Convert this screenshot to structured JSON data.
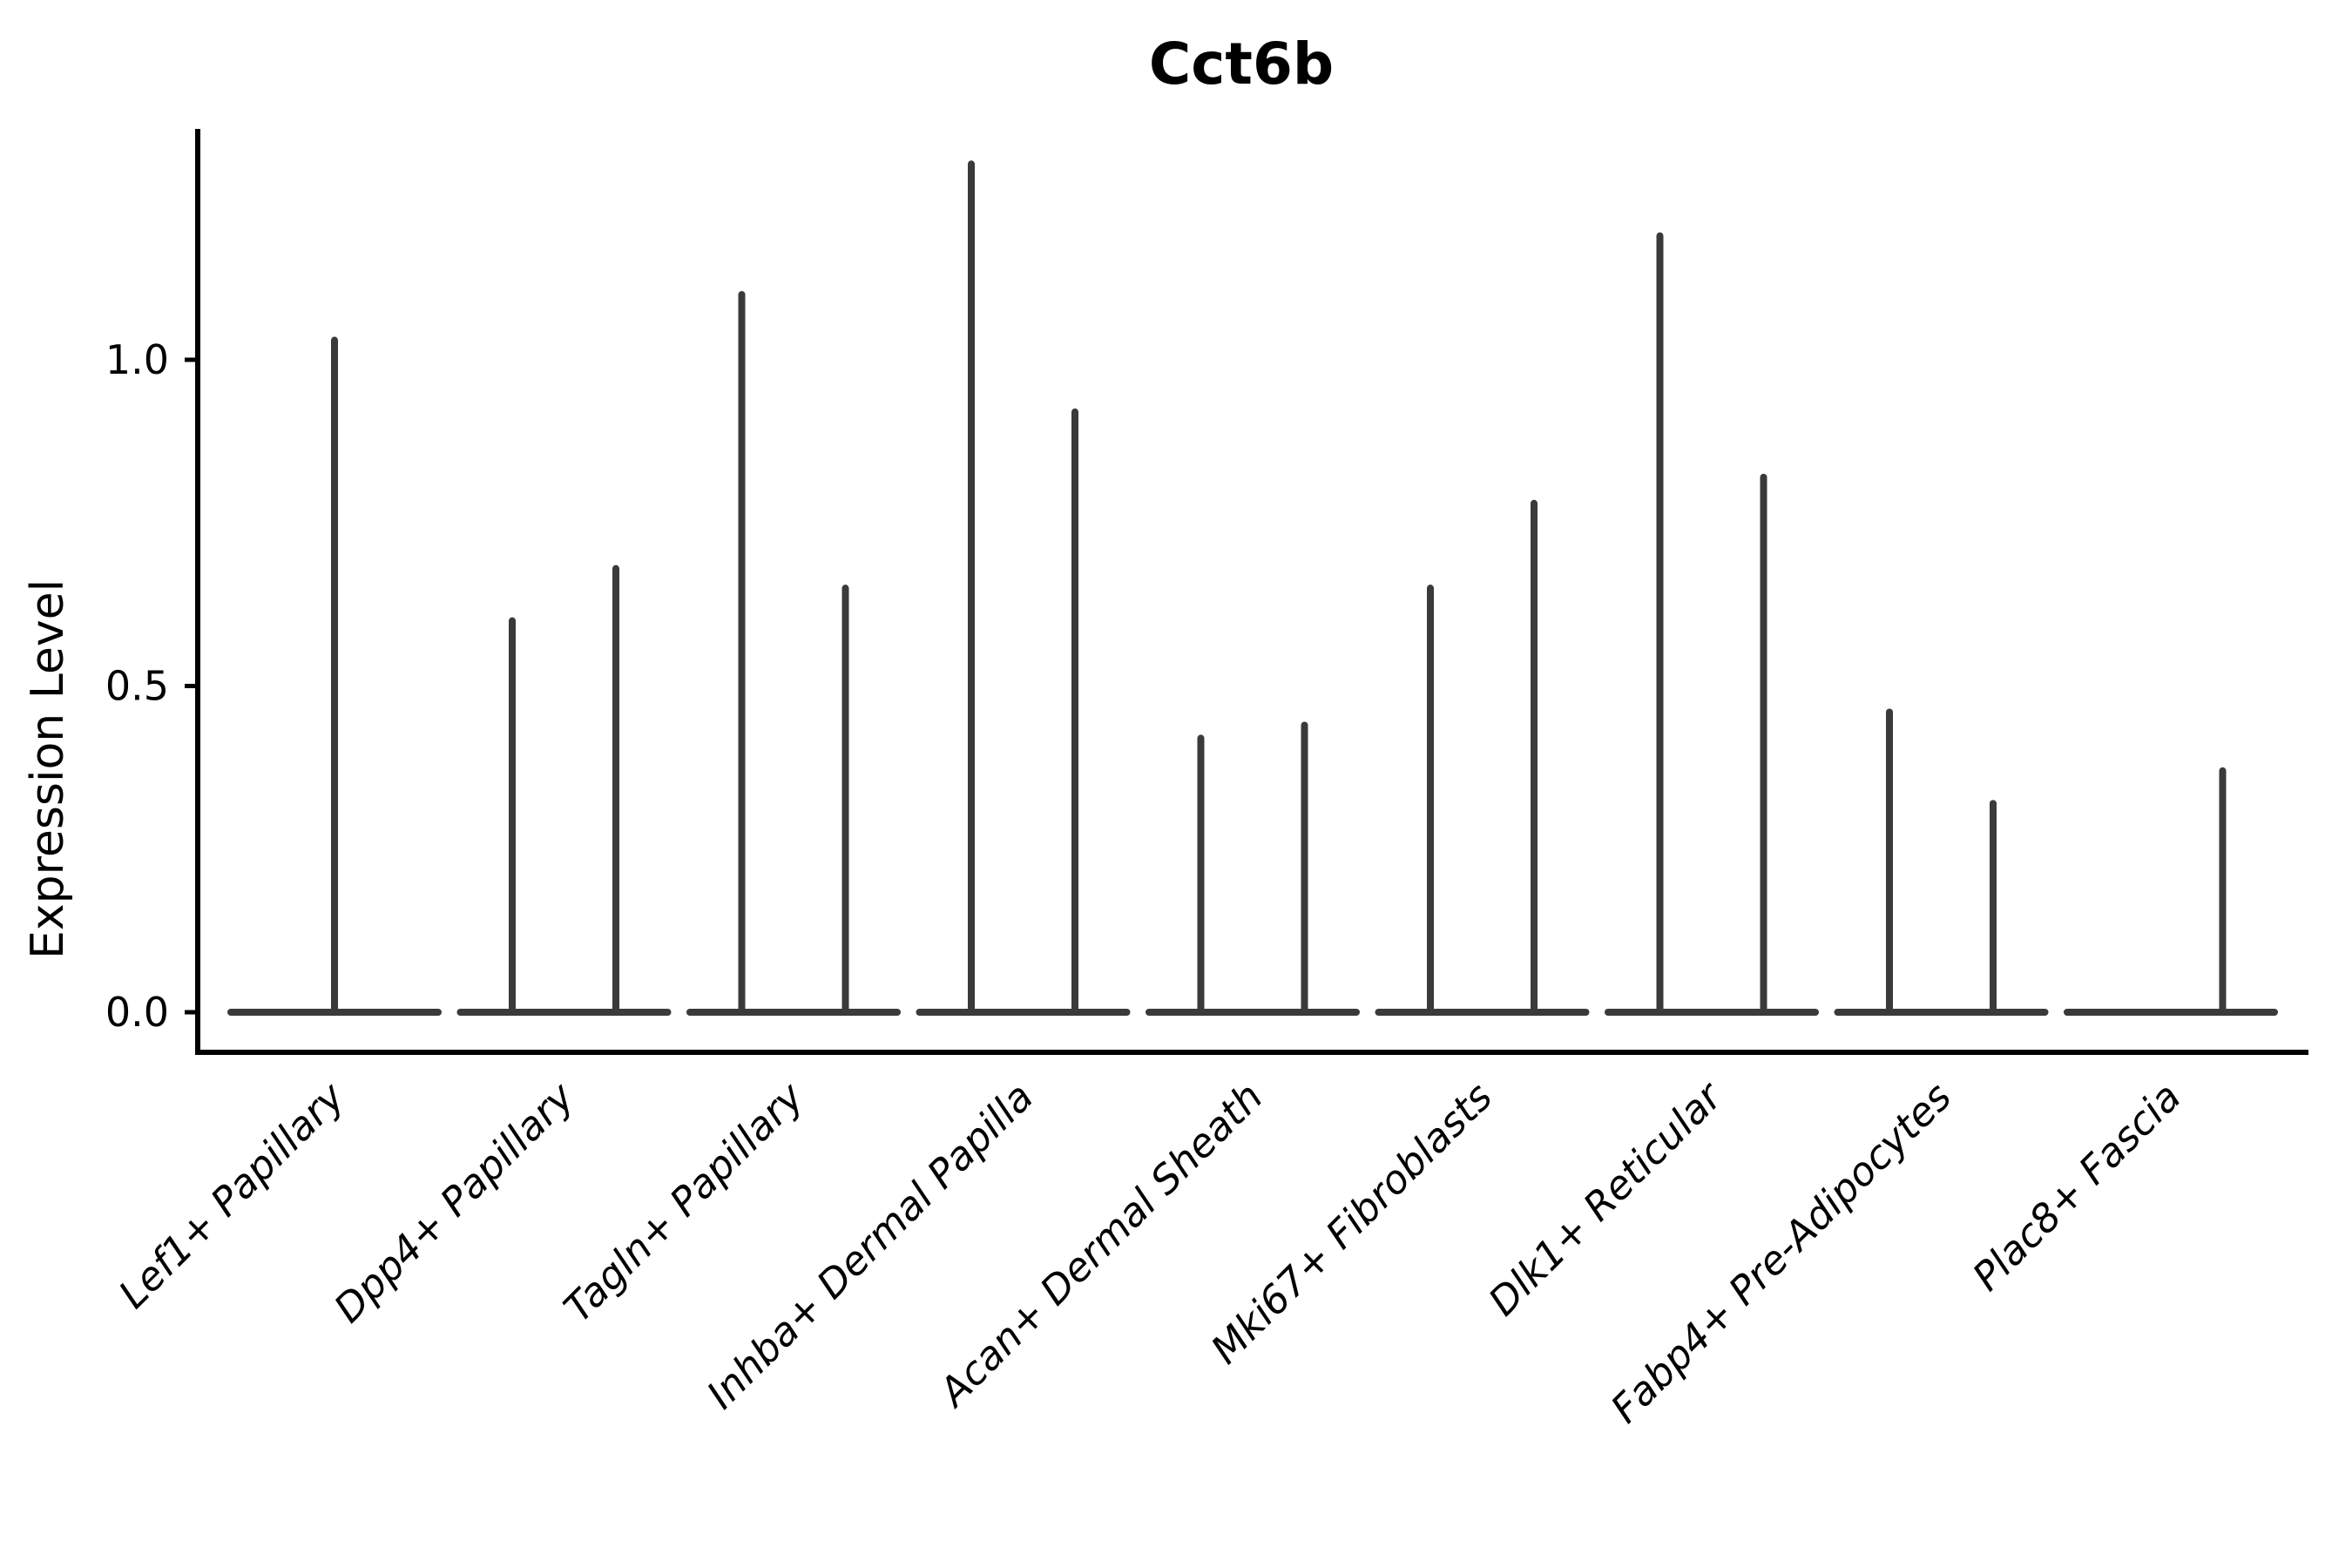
{
  "chart_data": {
    "type": "violin",
    "title": "Cct6b",
    "ylabel": "Expression Level",
    "xlabel": "",
    "yticks": [
      "0.0",
      "0.5",
      "1.0"
    ],
    "ytick_values": [
      0.0,
      0.5,
      1.0
    ],
    "ylim": [
      -0.06,
      1.35
    ],
    "grid": false,
    "legend_position": "none",
    "description": "Seurat-style violin plot of gene expression; each cell-type category shows one or two very thin violins: a wide flat base at expression 0 and a hairline spike rising to the maximum expression value.",
    "categories": [
      "Lef1+ Papillary",
      "Dpp4+ Papillary",
      "Tagln+ Papillary",
      "Inhba+ Dermal Papilla",
      "Acan+ Dermal Sheath",
      "Mki67+ Fibroblasts",
      "Dlk1+ Reticular",
      "Fabp4+ Pre-Adipocytes",
      "Plac8+ Fascia"
    ],
    "violins": [
      {
        "category": "Lef1+ Papillary",
        "spikes": [
          {
            "slot": "center",
            "max": 1.03
          }
        ]
      },
      {
        "category": "Dpp4+ Papillary",
        "spikes": [
          {
            "slot": "left",
            "max": 0.6
          },
          {
            "slot": "right",
            "max": 0.68
          }
        ]
      },
      {
        "category": "Tagln+ Papillary",
        "spikes": [
          {
            "slot": "left",
            "max": 1.1
          },
          {
            "slot": "right",
            "max": 0.65
          }
        ]
      },
      {
        "category": "Inhba+ Dermal Papilla",
        "spikes": [
          {
            "slot": "left",
            "max": 1.3
          },
          {
            "slot": "right",
            "max": 0.92
          }
        ]
      },
      {
        "category": "Acan+ Dermal Sheath",
        "spikes": [
          {
            "slot": "left",
            "max": 0.42
          },
          {
            "slot": "right",
            "max": 0.44
          }
        ]
      },
      {
        "category": "Mki67+ Fibroblasts",
        "spikes": [
          {
            "slot": "left",
            "max": 0.65
          },
          {
            "slot": "right",
            "max": 0.78
          }
        ]
      },
      {
        "category": "Dlk1+ Reticular",
        "spikes": [
          {
            "slot": "left",
            "max": 1.19
          },
          {
            "slot": "right",
            "max": 0.82
          }
        ]
      },
      {
        "category": "Fabp4+ Pre-Adipocytes",
        "spikes": [
          {
            "slot": "left",
            "max": 0.46
          },
          {
            "slot": "right",
            "max": 0.32
          }
        ]
      },
      {
        "category": "Plac8+ Fascia",
        "spikes": [
          {
            "slot": "right",
            "max": 0.37
          }
        ]
      }
    ],
    "colors": {
      "violin_line": "#3a3a3a",
      "axis": "#000000",
      "text": "#000000",
      "background": "#ffffff"
    }
  }
}
